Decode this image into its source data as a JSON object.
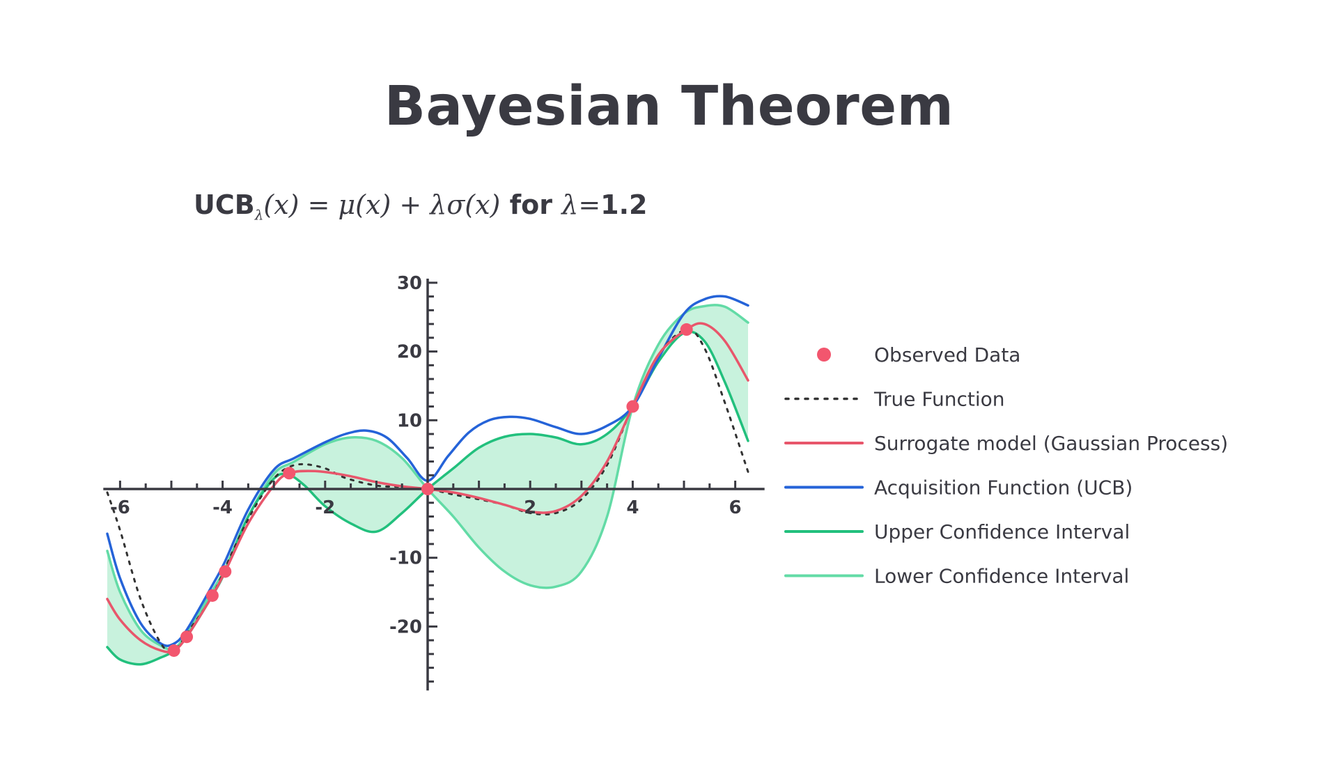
{
  "title": "Bayesian Theorem",
  "subtitle": {
    "prefix": "UCB",
    "sub": "λ",
    "formula": "(x) = μ(x) + λσ(x)",
    "suffix_text": " for ",
    "lambda_sym": "λ",
    "equals": "=",
    "lambda_value": "1.2"
  },
  "colors": {
    "observed": "#f2566e",
    "true_function": "#333333",
    "surrogate": "#e8566b",
    "acquisition": "#2563d8",
    "upper_ci": "#22c07d",
    "lower_ci": "#63dba6",
    "band_fill": "#c8f2dd",
    "axis": "#3a3a42"
  },
  "legend": [
    {
      "key": "observed",
      "label": "Observed Data",
      "style": "marker"
    },
    {
      "key": "true_function",
      "label": "True Function",
      "style": "dotted"
    },
    {
      "key": "surrogate",
      "label": "Surrogate model (Gaussian Process)",
      "style": "line"
    },
    {
      "key": "acquisition",
      "label": "Acquisition Function (UCB)",
      "style": "line"
    },
    {
      "key": "upper_ci",
      "label": "Upper Confidence Interval",
      "style": "line"
    },
    {
      "key": "lower_ci",
      "label": "Lower Confidence Interval",
      "style": "line"
    }
  ],
  "chart_data": {
    "type": "line",
    "xlim": [
      -6.3,
      6.3
    ],
    "ylim": [
      -29,
      31
    ],
    "xticks": [
      -6,
      -4,
      -2,
      2,
      4,
      6
    ],
    "yticks": [
      30,
      20,
      10,
      -10,
      -20
    ],
    "grid": false,
    "legend_position": "right",
    "observed": [
      {
        "x": -4.95,
        "y": -23.5
      },
      {
        "x": -4.7,
        "y": -21.5
      },
      {
        "x": -4.2,
        "y": -15.5
      },
      {
        "x": -3.95,
        "y": -12
      },
      {
        "x": -2.7,
        "y": 2.3
      },
      {
        "x": 0.0,
        "y": 0.0
      },
      {
        "x": 4.0,
        "y": 12.0
      },
      {
        "x": 5.05,
        "y": 23.2
      }
    ],
    "series": [
      {
        "name": "True Function",
        "key": "true_function",
        "x": [
          -6.25,
          -6.0,
          -5.6,
          -5.2,
          -4.95,
          -4.6,
          -4.2,
          -3.8,
          -3.4,
          -3.0,
          -2.7,
          -2.4,
          -2.0,
          -1.6,
          -1.0,
          -0.5,
          0.0,
          0.5,
          1.0,
          1.5,
          2.0,
          2.5,
          3.0,
          3.5,
          4.0,
          4.5,
          5.05,
          5.4,
          5.8,
          6.25
        ],
        "y": [
          -0.5,
          -6,
          -16,
          -22.5,
          -23.5,
          -20,
          -15.5,
          -9,
          -3,
          1.5,
          3.2,
          3.6,
          3.0,
          1.6,
          0.5,
          0.3,
          0.0,
          -0.8,
          -1.5,
          -2.3,
          -3.5,
          -3.5,
          -1.5,
          3.5,
          12.0,
          19.5,
          23.2,
          20.5,
          12.5,
          2.5
        ]
      },
      {
        "name": "Surrogate model (Gaussian Process)",
        "key": "surrogate",
        "x": [
          -6.25,
          -6.0,
          -5.6,
          -5.2,
          -4.95,
          -4.7,
          -4.2,
          -3.95,
          -3.5,
          -3.0,
          -2.7,
          -2.2,
          -1.6,
          -1.0,
          -0.5,
          0.0,
          0.5,
          1.0,
          1.5,
          2.0,
          2.5,
          3.0,
          3.5,
          4.0,
          4.5,
          5.05,
          5.4,
          5.8,
          6.25
        ],
        "y": [
          -16,
          -19,
          -22,
          -23.5,
          -23.5,
          -21.5,
          -15.5,
          -12,
          -5,
          0.5,
          2.3,
          2.6,
          2.0,
          1.0,
          0.4,
          0.0,
          -0.5,
          -1.3,
          -2.3,
          -3.3,
          -3.2,
          -1.0,
          4.0,
          12.0,
          19.5,
          23.2,
          24.0,
          21.5,
          15.8
        ]
      },
      {
        "name": "Acquisition Function (UCB)",
        "key": "acquisition",
        "x": [
          -6.25,
          -6.0,
          -5.6,
          -5.2,
          -4.95,
          -4.7,
          -4.2,
          -3.95,
          -3.5,
          -3.0,
          -2.6,
          -2.0,
          -1.6,
          -1.2,
          -0.8,
          -0.4,
          0.0,
          0.4,
          0.8,
          1.2,
          1.6,
          2.0,
          2.5,
          3.0,
          3.5,
          4.0,
          4.5,
          5.0,
          5.4,
          5.8,
          6.25
        ],
        "y": [
          -6.5,
          -13,
          -19.5,
          -22.5,
          -22.5,
          -20.5,
          -14,
          -10.5,
          -3,
          2.8,
          4.5,
          6.8,
          8.0,
          8.5,
          7.5,
          4.5,
          1.2,
          4.8,
          8.2,
          10.0,
          10.5,
          10.2,
          9.0,
          8.0,
          9.2,
          12.0,
          19.0,
          25.5,
          27.6,
          28.0,
          26.7
        ]
      },
      {
        "name": "Upper Confidence Interval",
        "key": "upper_ci",
        "x": [
          -6.25,
          -6.0,
          -5.6,
          -5.2,
          -4.95,
          -4.7,
          -4.2,
          -3.95,
          -3.5,
          -3.0,
          -2.7,
          -2.4,
          -2.0,
          -1.5,
          -1.0,
          -0.5,
          0.0,
          0.5,
          1.0,
          1.5,
          2.0,
          2.5,
          3.0,
          3.5,
          4.0,
          4.5,
          5.0,
          5.4,
          5.8,
          6.25
        ],
        "y": [
          -23,
          -24.8,
          -25.5,
          -24.5,
          -23.5,
          -21.5,
          -15.5,
          -12,
          -4,
          1.5,
          2.0,
          0.5,
          -2.5,
          -5.0,
          -6.2,
          -3.5,
          0.0,
          3.0,
          6.0,
          7.6,
          8.0,
          7.5,
          6.5,
          8.0,
          12.0,
          18.5,
          22.7,
          21.5,
          15.5,
          7.0
        ]
      },
      {
        "name": "Lower Confidence Interval",
        "key": "lower_ci",
        "x": [
          -6.25,
          -6.0,
          -5.6,
          -5.2,
          -4.95,
          -4.7,
          -4.2,
          -3.95,
          -3.5,
          -3.0,
          -2.6,
          -2.0,
          -1.5,
          -1.0,
          -0.5,
          0.0,
          0.5,
          1.0,
          1.5,
          2.0,
          2.5,
          3.0,
          3.5,
          4.0,
          4.5,
          5.0,
          5.4,
          5.8,
          6.25
        ],
        "y": [
          -9,
          -15,
          -20.5,
          -22.8,
          -23.2,
          -21.0,
          -14.8,
          -11.5,
          -4,
          2.2,
          4.0,
          6.5,
          7.5,
          7.0,
          4.5,
          0.0,
          -4.0,
          -8.5,
          -12.0,
          -14.0,
          -14.2,
          -12.0,
          -4.0,
          12.0,
          21.0,
          25.5,
          26.6,
          26.5,
          24.2
        ]
      }
    ]
  }
}
